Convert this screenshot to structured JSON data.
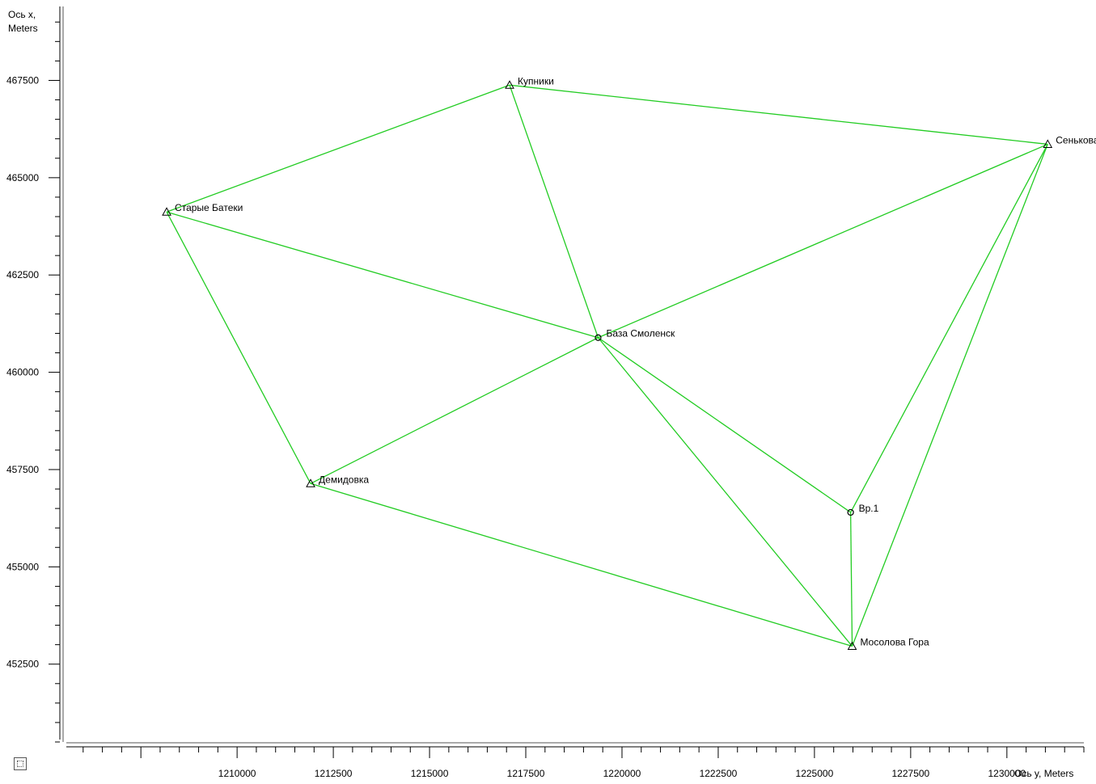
{
  "y_axis_title": [
    "Ось x,",
    "Meters"
  ],
  "x_axis_title": "Ось y, Meters",
  "corner_icon": "zoom-extent-icon",
  "line_color": "#22cc22",
  "chart_data": {
    "type": "scatter",
    "xlabel": "Ось y, Meters",
    "ylabel": "Ось x, Meters",
    "xlim": [
      1205500,
      1232000
    ],
    "ylim": [
      450500,
      469400
    ],
    "x_ticks": [
      1210000,
      1212500,
      1215000,
      1217500,
      1220000,
      1222500,
      1225000,
      1227500,
      1230000
    ],
    "y_ticks": [
      452500,
      455000,
      457500,
      460000,
      462500,
      465000,
      467500
    ],
    "points": [
      {
        "name": "Купники",
        "x": 1217080,
        "y": 467380,
        "marker": "triangle"
      },
      {
        "name": "Сенькова",
        "x": 1231060,
        "y": 465860,
        "marker": "triangle"
      },
      {
        "name": "Старые Батеки",
        "x": 1208170,
        "y": 464120,
        "marker": "triangle"
      },
      {
        "name": "База Смоленск",
        "x": 1219380,
        "y": 460890,
        "marker": "circle"
      },
      {
        "name": "Демидовка",
        "x": 1211910,
        "y": 457140,
        "marker": "triangle"
      },
      {
        "name": "Вр.1",
        "x": 1225940,
        "y": 456400,
        "marker": "circle"
      },
      {
        "name": "Мосолова Гора",
        "x": 1225980,
        "y": 452960,
        "marker": "triangle"
      }
    ],
    "edges": [
      [
        "Старые Батеки",
        "Купники"
      ],
      [
        "Купники",
        "Сенькова"
      ],
      [
        "Купники",
        "База Смоленск"
      ],
      [
        "Старые Батеки",
        "База Смоленск"
      ],
      [
        "Старые Батеки",
        "Демидовка"
      ],
      [
        "Сенькова",
        "База Смоленск"
      ],
      [
        "Сенькова",
        "Вр.1"
      ],
      [
        "Сенькова",
        "Мосолова Гора"
      ],
      [
        "Демидовка",
        "База Смоленск"
      ],
      [
        "Демидовка",
        "Мосолова Гора"
      ],
      [
        "База Смоленск",
        "Вр.1"
      ],
      [
        "База Смоленск",
        "Мосолова Гора"
      ],
      [
        "Вр.1",
        "Мосолова Гора"
      ]
    ]
  }
}
